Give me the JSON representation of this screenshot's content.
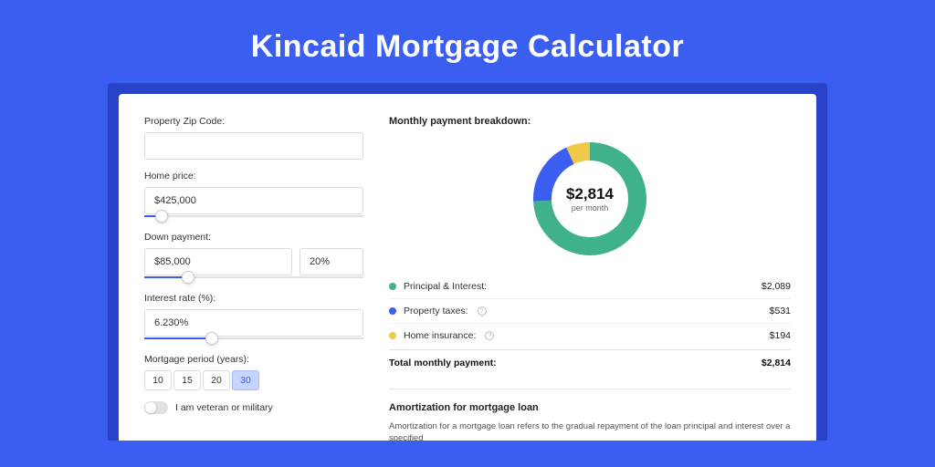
{
  "page": {
    "title": "Kincaid Mortgage Calculator",
    "background_color": "#3a5ef0",
    "frame_color": "#2843c8",
    "card_color": "#ffffff"
  },
  "form": {
    "zip": {
      "label": "Property Zip Code:",
      "value": ""
    },
    "home_price": {
      "label": "Home price:",
      "value": "$425,000",
      "slider_pct": 8
    },
    "down_payment": {
      "label": "Down payment:",
      "value": "$85,000",
      "pct_value": "20%",
      "slider_pct": 20
    },
    "interest_rate": {
      "label": "Interest rate (%):",
      "value": "6.230%",
      "slider_pct": 31
    },
    "period": {
      "label": "Mortgage period (years):",
      "options": [
        "10",
        "15",
        "20",
        "30"
      ],
      "selected": "30"
    },
    "veteran": {
      "label": "I am veteran or military",
      "checked": false
    }
  },
  "breakdown": {
    "title": "Monthly payment breakdown:",
    "center_amount": "$2,814",
    "center_sub": "per month",
    "donut": {
      "type": "donut",
      "radius": 52,
      "stroke": 20,
      "background": "#ffffff",
      "slices": [
        {
          "key": "principal_interest",
          "value": 2089,
          "color": "#3fb28c"
        },
        {
          "key": "property_taxes",
          "value": 531,
          "color": "#3a5ef0"
        },
        {
          "key": "home_insurance",
          "value": 194,
          "color": "#f0c94a"
        }
      ]
    },
    "items": [
      {
        "label": "Principal & Interest:",
        "value": "$2,089",
        "color": "#3fb28c",
        "info": false
      },
      {
        "label": "Property taxes:",
        "value": "$531",
        "color": "#3a5ef0",
        "info": true
      },
      {
        "label": "Home insurance:",
        "value": "$194",
        "color": "#f0c94a",
        "info": true
      }
    ],
    "total": {
      "label": "Total monthly payment:",
      "value": "$2,814"
    }
  },
  "amortization": {
    "title": "Amortization for mortgage loan",
    "text": "Amortization for a mortgage loan refers to the gradual repayment of the loan principal and interest over a specified"
  }
}
